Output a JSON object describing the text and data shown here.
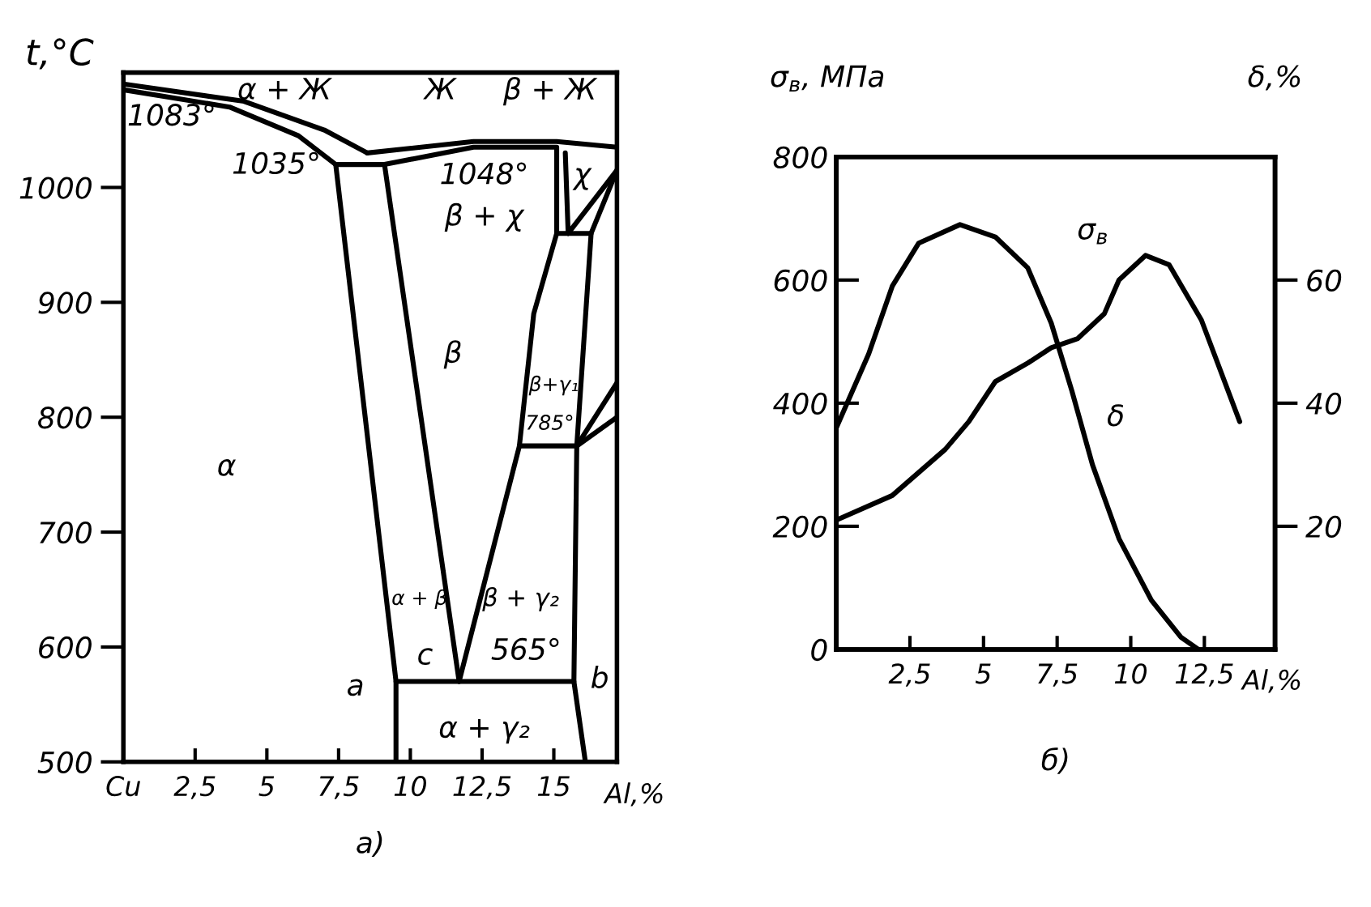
{
  "chart_data": [
    {
      "type": "line",
      "title": "а)",
      "xlabel": "Al,%",
      "ylabel": "t,°C",
      "xlim": [
        0,
        17.2
      ],
      "ylim": [
        500,
        1100
      ],
      "xticks": [
        {
          "value": 0,
          "label": "Cu"
        },
        {
          "value": 2.5,
          "label": "2,5"
        },
        5,
        {
          "value": 7.5,
          "label": "7,5"
        },
        10,
        {
          "value": 12.5,
          "label": "12,5"
        },
        15
      ],
      "yticks": [
        500,
        600,
        700,
        800,
        900,
        1000
      ],
      "grid": false,
      "legend": false,
      "marker": "none",
      "line_style": "solid",
      "series": [
        {
          "color": "#000000",
          "x": [
            0,
            4.2,
            7.0,
            8.5
          ],
          "values": [
            1090,
            1075,
            1050,
            1030
          ]
        },
        {
          "color": "#000000",
          "x": [
            0,
            3.7,
            6.1,
            7.4
          ],
          "values": [
            1085,
            1070,
            1045,
            1020
          ]
        },
        {
          "color": "#000000",
          "x": [
            8.5,
            12.2,
            15.1,
            17.2
          ],
          "values": [
            1030,
            1040,
            1040,
            1035
          ]
        },
        {
          "color": "#000000",
          "x": [
            7.4,
            9.1,
            12.2,
            15.1,
            15.1,
            16.3
          ],
          "values": [
            1020,
            1020,
            1035,
            1035,
            960,
            960
          ]
        },
        {
          "color": "#000000",
          "x": [
            7.4,
            9.5,
            9.5
          ],
          "values": [
            1020,
            570,
            500
          ]
        },
        {
          "color": "#000000",
          "x": [
            9.1,
            11.7
          ],
          "values": [
            1020,
            570
          ]
        },
        {
          "color": "#000000",
          "x": [
            11.7,
            13.8,
            14.3,
            15.1
          ],
          "values": [
            570,
            775,
            890,
            960
          ]
        },
        {
          "color": "#000000",
          "x": [
            9.5,
            15.7
          ],
          "values": [
            570,
            570
          ]
        },
        {
          "color": "#000000",
          "x": [
            16.1,
            15.7,
            15.8,
            16.3,
            17.2
          ],
          "values": [
            500,
            570,
            775,
            960,
            1015
          ]
        },
        {
          "color": "#000000",
          "x": [
            13.8,
            15.8
          ],
          "values": [
            775,
            775
          ]
        },
        {
          "color": "#000000",
          "x": [
            15.4,
            15.5
          ],
          "values": [
            1030,
            960
          ]
        },
        {
          "color": "#000000",
          "x": [
            15.5,
            17.2
          ],
          "values": [
            960,
            1015
          ]
        },
        {
          "color": "#000000",
          "x": [
            15.8,
            17.2
          ],
          "values": [
            775,
            830
          ]
        },
        {
          "color": "#000000",
          "x": [
            15.8,
            17.2
          ],
          "values": [
            775,
            800
          ]
        }
      ],
      "annotations": [
        "1083°",
        "α + Ж",
        "Ж",
        "β + Ж",
        "1035°",
        "1048°",
        "β + χ",
        "χ",
        "β",
        "β+γ₁",
        "785°",
        "α",
        "α + β",
        "β + γ₂",
        "c",
        "565°",
        "a",
        "b",
        "α + γ₂"
      ]
    },
    {
      "type": "line",
      "title": "б)",
      "xlabel": "Al,%",
      "ylabel": "σ$_{в}$, МПа",
      "y2label": "δ,%",
      "xlim": [
        0,
        14.9
      ],
      "ylim": [
        0,
        800
      ],
      "y2lim": [
        0,
        80
      ],
      "xticks": [
        {
          "value": 2.5,
          "label": "2,5"
        },
        5,
        {
          "value": 7.5,
          "label": "7,5"
        },
        10,
        {
          "value": 12.5,
          "label": "12,5"
        }
      ],
      "yticks": [
        0,
        200,
        400,
        600,
        800
      ],
      "y2ticks": [
        20,
        40,
        60
      ],
      "grid": false,
      "legend": false,
      "marker": "none",
      "line_style": "solid",
      "series": [
        {
          "color": "#000000",
          "x": [
            0,
            1.9,
            3.7,
            4.5,
            5.4,
            6.5,
            7.3,
            8.2,
            9.1,
            9.6,
            10.5,
            11.3,
            12.4,
            13.7
          ],
          "values": [
            210,
            250,
            325,
            370,
            435,
            465,
            490,
            505,
            545,
            600,
            640,
            625,
            535,
            370
          ]
        },
        {
          "color": "#000000",
          "axis": "y2",
          "x": [
            0,
            1.1,
            1.9,
            2.8,
            4.2,
            5.4,
            6.5,
            7.3,
            8.0,
            8.7,
            9.6,
            10.7,
            11.7,
            12.3
          ],
          "values": [
            36,
            48,
            59,
            66,
            69,
            67,
            62,
            53,
            42,
            30,
            18,
            8,
            2,
            0
          ]
        }
      ],
      "annotations": [
        "σ$_{в}$",
        "δ"
      ]
    }
  ]
}
